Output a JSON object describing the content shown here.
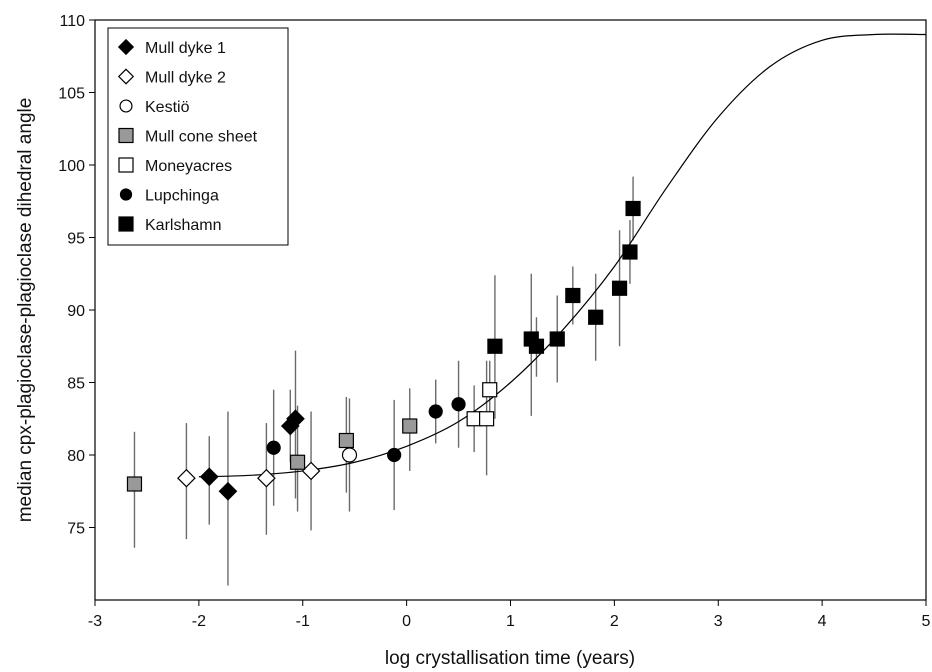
{
  "chart_data": {
    "type": "scatter",
    "title": "",
    "xlabel": "log crystallisation time (years)",
    "ylabel": "median cpx-plagioclase-plagioclase dihedral angle",
    "xlim": [
      -3,
      5
    ],
    "ylim": [
      70,
      110
    ],
    "x_ticks": [
      "-3",
      "-2",
      "-1",
      "0",
      "1",
      "2",
      "3",
      "4",
      "5"
    ],
    "y_ticks": [
      "75",
      "80",
      "85",
      "90",
      "95",
      "100",
      "105",
      "110"
    ],
    "grid": false,
    "legend_position": "top-left",
    "series": [
      {
        "name": "Mull dyke 1",
        "marker": "diamond",
        "fill": "#000000",
        "points": [
          {
            "x": -1.9,
            "y": 78.5,
            "err": [
              75.2,
              81.3
            ]
          },
          {
            "x": -1.72,
            "y": 77.5,
            "err": [
              71.0,
              83.0
            ]
          },
          {
            "x": -1.12,
            "y": 82.0,
            "err": [
              79.5,
              84.5
            ]
          },
          {
            "x": -1.07,
            "y": 82.5,
            "err": [
              77.0,
              87.2
            ]
          }
        ]
      },
      {
        "name": "Mull dyke 2",
        "marker": "diamond",
        "fill": "#ffffff",
        "points": [
          {
            "x": -2.12,
            "y": 78.4,
            "err": [
              74.2,
              82.2
            ]
          },
          {
            "x": -1.35,
            "y": 78.4,
            "err": [
              74.5,
              82.2
            ]
          },
          {
            "x": -0.92,
            "y": 78.9,
            "err": [
              74.8,
              83.0
            ]
          }
        ]
      },
      {
        "name": "Kestiö",
        "marker": "circle",
        "fill": "#ffffff",
        "points": [
          {
            "x": -0.55,
            "y": 80.0,
            "err": [
              76.1,
              83.9
            ]
          }
        ]
      },
      {
        "name": "Mull cone sheet",
        "marker": "square",
        "fill": "#999999",
        "points": [
          {
            "x": -2.62,
            "y": 78.0,
            "err": [
              73.6,
              81.6
            ]
          },
          {
            "x": -1.05,
            "y": 79.5,
            "err": [
              76.1,
              83.4
            ]
          },
          {
            "x": -0.58,
            "y": 81.0,
            "err": [
              77.4,
              84.0
            ]
          },
          {
            "x": 0.03,
            "y": 82.0,
            "err": [
              78.9,
              84.6
            ]
          }
        ]
      },
      {
        "name": "Moneyacres",
        "marker": "square",
        "fill": "#ffffff",
        "points": [
          {
            "x": 0.65,
            "y": 82.5,
            "err": [
              80.2,
              84.8
            ]
          },
          {
            "x": 0.77,
            "y": 82.5,
            "err": [
              78.6,
              86.5
            ]
          },
          {
            "x": 0.8,
            "y": 84.5,
            "err": [
              82.5,
              86.5
            ]
          }
        ]
      },
      {
        "name": "Lupchinga",
        "marker": "circle",
        "fill": "#000000",
        "points": [
          {
            "x": -1.28,
            "y": 80.5,
            "err": [
              76.5,
              84.5
            ]
          },
          {
            "x": -0.12,
            "y": 80.0,
            "err": [
              76.2,
              83.8
            ]
          },
          {
            "x": 0.28,
            "y": 83.0,
            "err": [
              80.8,
              85.2
            ]
          },
          {
            "x": 0.5,
            "y": 83.5,
            "err": [
              80.5,
              86.5
            ]
          }
        ]
      },
      {
        "name": "Karlshamn",
        "marker": "square",
        "fill": "#000000",
        "points": [
          {
            "x": 0.85,
            "y": 87.5,
            "err": [
              82.5,
              92.4
            ]
          },
          {
            "x": 1.2,
            "y": 88.0,
            "err": [
              82.7,
              92.5
            ]
          },
          {
            "x": 1.25,
            "y": 87.5,
            "err": [
              85.4,
              89.5
            ]
          },
          {
            "x": 1.45,
            "y": 88.0,
            "err": [
              85.0,
              91.0
            ]
          },
          {
            "x": 1.6,
            "y": 91.0,
            "err": [
              89.0,
              93.0
            ]
          },
          {
            "x": 1.82,
            "y": 89.5,
            "err": [
              86.5,
              92.5
            ]
          },
          {
            "x": 2.05,
            "y": 91.5,
            "err": [
              87.5,
              95.5
            ]
          },
          {
            "x": 2.15,
            "y": 94.0,
            "err": [
              91.8,
              96.2
            ]
          },
          {
            "x": 2.18,
            "y": 97.0,
            "err": [
              94.8,
              99.2
            ]
          }
        ]
      }
    ],
    "curve": {
      "type": "sigmoid",
      "points": [
        {
          "x": -2.0,
          "y": 78.5
        },
        {
          "x": -1.5,
          "y": 78.6
        },
        {
          "x": -1.0,
          "y": 78.9
        },
        {
          "x": -0.5,
          "y": 79.5
        },
        {
          "x": 0.0,
          "y": 80.6
        },
        {
          "x": 0.5,
          "y": 82.3
        },
        {
          "x": 1.0,
          "y": 85.0
        },
        {
          "x": 1.5,
          "y": 88.6
        },
        {
          "x": 2.0,
          "y": 93.0
        },
        {
          "x": 2.5,
          "y": 98.4
        },
        {
          "x": 3.0,
          "y": 103.3
        },
        {
          "x": 3.5,
          "y": 106.8
        },
        {
          "x": 4.0,
          "y": 108.6
        },
        {
          "x": 4.5,
          "y": 109.0
        },
        {
          "x": 5.0,
          "y": 109.0
        }
      ]
    }
  }
}
